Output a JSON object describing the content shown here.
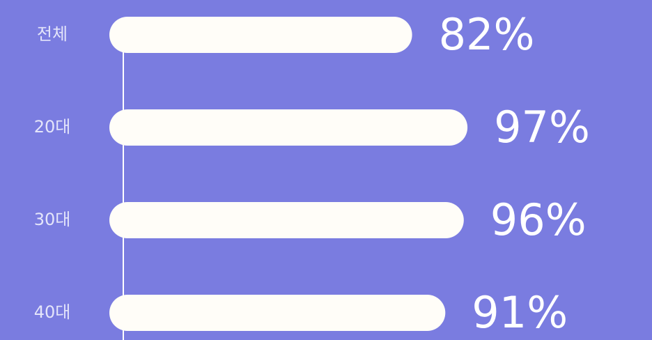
{
  "chart_data": {
    "type": "bar",
    "orientation": "horizontal",
    "categories": [
      "전체",
      "20대",
      "30대",
      "40대"
    ],
    "values": [
      82,
      97,
      96,
      91
    ],
    "value_labels": [
      "82%",
      "97%",
      "96%",
      "91%"
    ],
    "color": "#fffdf8"
  }
}
